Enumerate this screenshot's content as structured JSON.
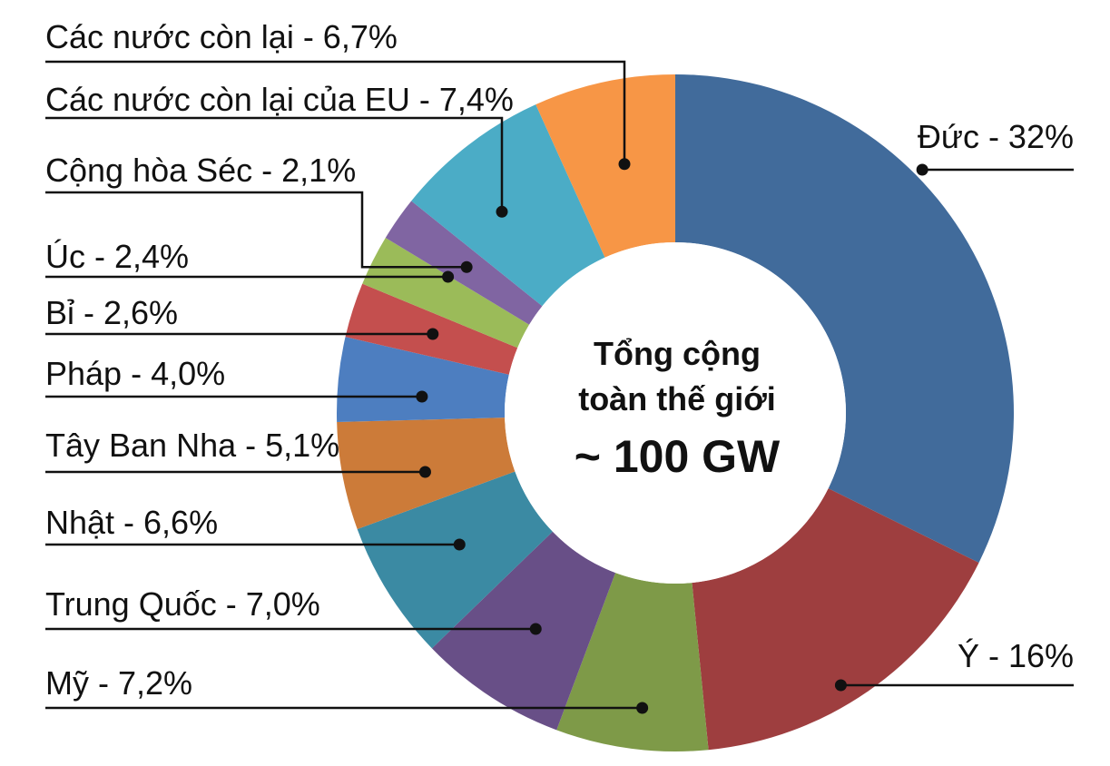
{
  "chart_data": {
    "type": "pie",
    "title": "",
    "center_label": {
      "line1": "Tổng cộng",
      "line2": "toàn thế giới",
      "line3": "~ 100 GW"
    },
    "slices": [
      {
        "label": "Đức - 32%",
        "value": 32,
        "color": "#416b9b"
      },
      {
        "label": "Ý - 16%",
        "value": 16,
        "color": "#9e3e3f"
      },
      {
        "label": "Mỹ - 7,2%",
        "value": 7.2,
        "color": "#7e9a48"
      },
      {
        "label": "Trung Quốc - 7,0%",
        "value": 7.0,
        "color": "#684f87"
      },
      {
        "label": "Nhật - 6,6%",
        "value": 6.6,
        "color": "#3b8aa3"
      },
      {
        "label": "Tây Ban Nha - 5,1%",
        "value": 5.1,
        "color": "#cc7b39"
      },
      {
        "label": "Pháp - 4,0%",
        "value": 4.0,
        "color": "#4d7ec0"
      },
      {
        "label": "Bỉ - 2,6%",
        "value": 2.6,
        "color": "#c44f4e"
      },
      {
        "label": "Úc - 2,4%",
        "value": 2.4,
        "color": "#9bbb59"
      },
      {
        "label": "Cộng hòa Séc - 2,1%",
        "value": 2.1,
        "color": "#8065a2"
      },
      {
        "label": "Các nước còn lại của EU - 7,4%",
        "value": 7.4,
        "color": "#4bacc6"
      },
      {
        "label": "Các nước còn lại - 6,7%",
        "value": 6.7,
        "color": "#f79646"
      }
    ],
    "legend": "none",
    "grid": false
  }
}
